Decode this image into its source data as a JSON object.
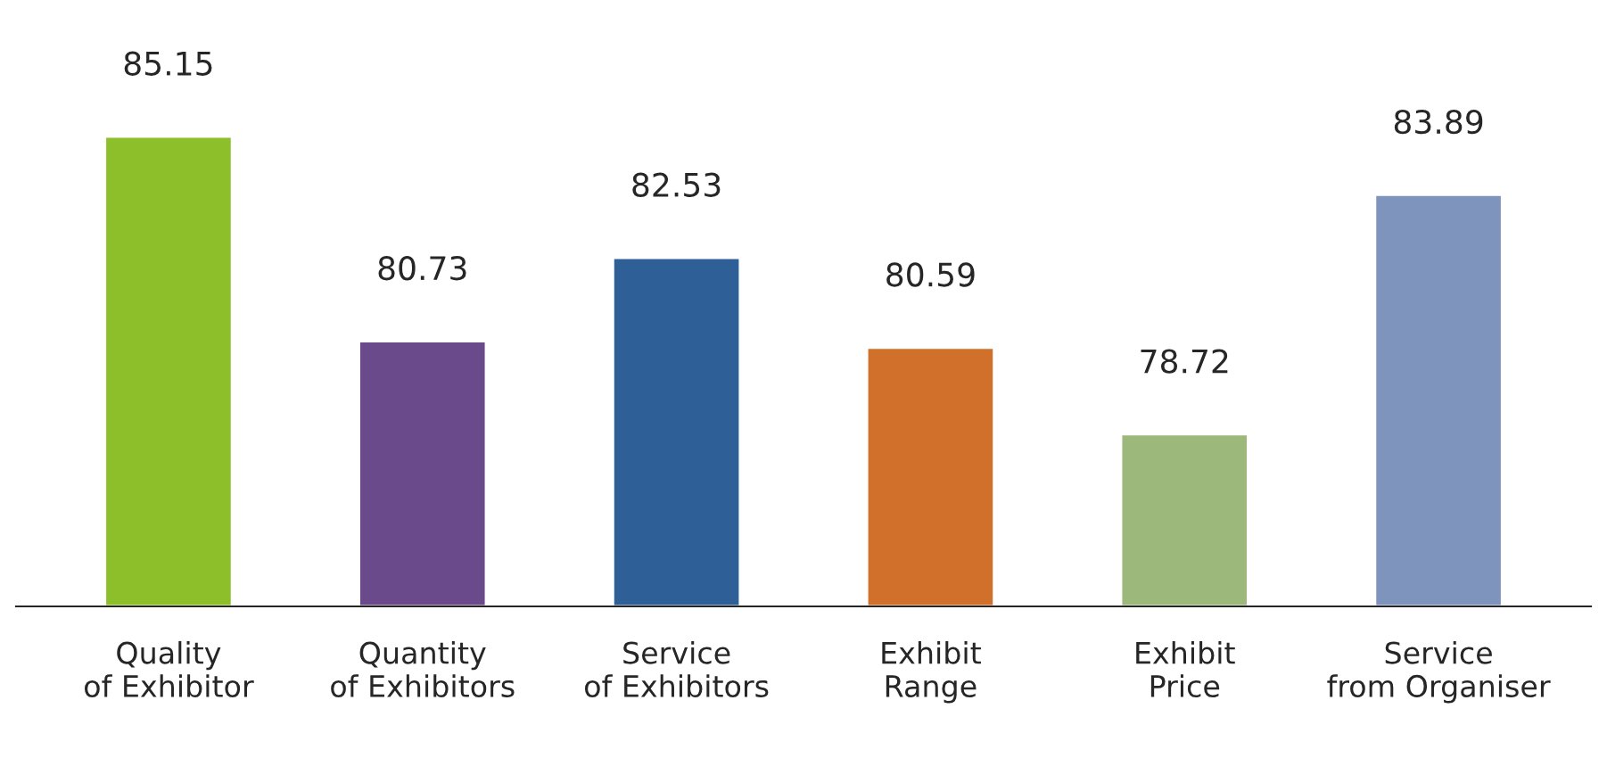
{
  "chart_data": {
    "type": "bar",
    "categories": [
      "Quality\nof Exhibitor",
      "Quantity\nof Exhibitors",
      "Service\nof Exhibitors",
      "Exhibit\nRange",
      "Exhibit\nPrice",
      "Service\nfrom Organiser"
    ],
    "values": [
      85.15,
      80.73,
      82.53,
      80.59,
      78.72,
      83.89
    ],
    "colors": [
      "#8cbf2a",
      "#6a4a8a",
      "#2e5f96",
      "#d0702a",
      "#9cb87a",
      "#7f94bd"
    ],
    "ylim": [
      75,
      85.15
    ],
    "tick_labels": "x",
    "data_labels": true
  }
}
